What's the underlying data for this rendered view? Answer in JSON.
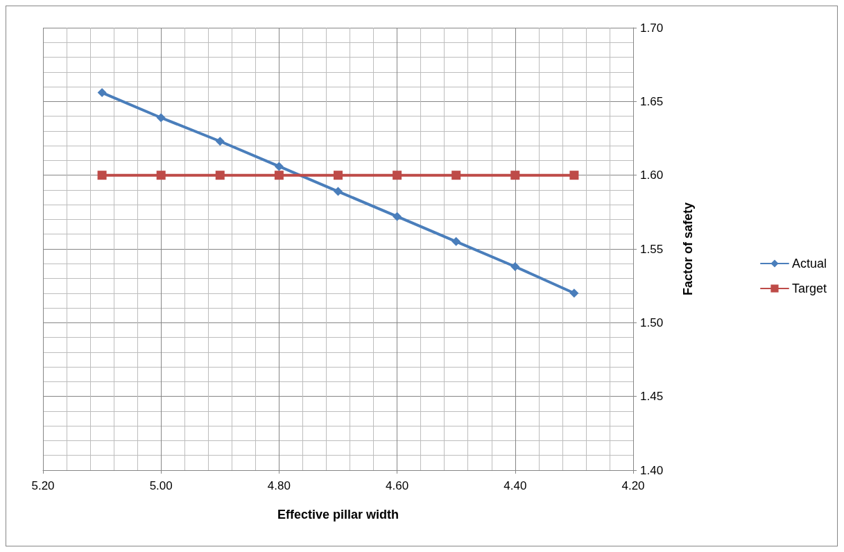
{
  "chart_data": {
    "type": "line",
    "xlabel": "Effective pillar width",
    "ylabel": "Factor of safety",
    "x": [
      5.1,
      5.0,
      4.9,
      4.8,
      4.7,
      4.6,
      4.5,
      4.4,
      4.3
    ],
    "series": [
      {
        "name": "Actual",
        "color": "#4a7ebb",
        "marker": "diamond",
        "values": [
          1.656,
          1.639,
          1.623,
          1.606,
          1.589,
          1.572,
          1.555,
          1.538,
          1.52
        ]
      },
      {
        "name": "Target",
        "color": "#be4b48",
        "marker": "square",
        "values": [
          1.6,
          1.6,
          1.6,
          1.6,
          1.6,
          1.6,
          1.6,
          1.6,
          1.6
        ]
      }
    ],
    "xlim": [
      5.2,
      4.2
    ],
    "xticks": [
      {
        "value": 5.2,
        "label": "5.20"
      },
      {
        "value": 5.0,
        "label": "5.00"
      },
      {
        "value": 4.8,
        "label": "4.80"
      },
      {
        "value": 4.6,
        "label": "4.60"
      },
      {
        "value": 4.4,
        "label": "4.40"
      },
      {
        "value": 4.2,
        "label": "4.20"
      }
    ],
    "ylim": [
      1.4,
      1.7
    ],
    "yticks": [
      {
        "value": 1.4,
        "label": "1.40"
      },
      {
        "value": 1.45,
        "label": "1.45"
      },
      {
        "value": 1.5,
        "label": "1.50"
      },
      {
        "value": 1.55,
        "label": "1.55"
      },
      {
        "value": 1.6,
        "label": "1.60"
      },
      {
        "value": 1.65,
        "label": "1.65"
      },
      {
        "value": 1.7,
        "label": "1.70"
      }
    ],
    "grid": true,
    "legend": "right",
    "line_style": "solid"
  }
}
